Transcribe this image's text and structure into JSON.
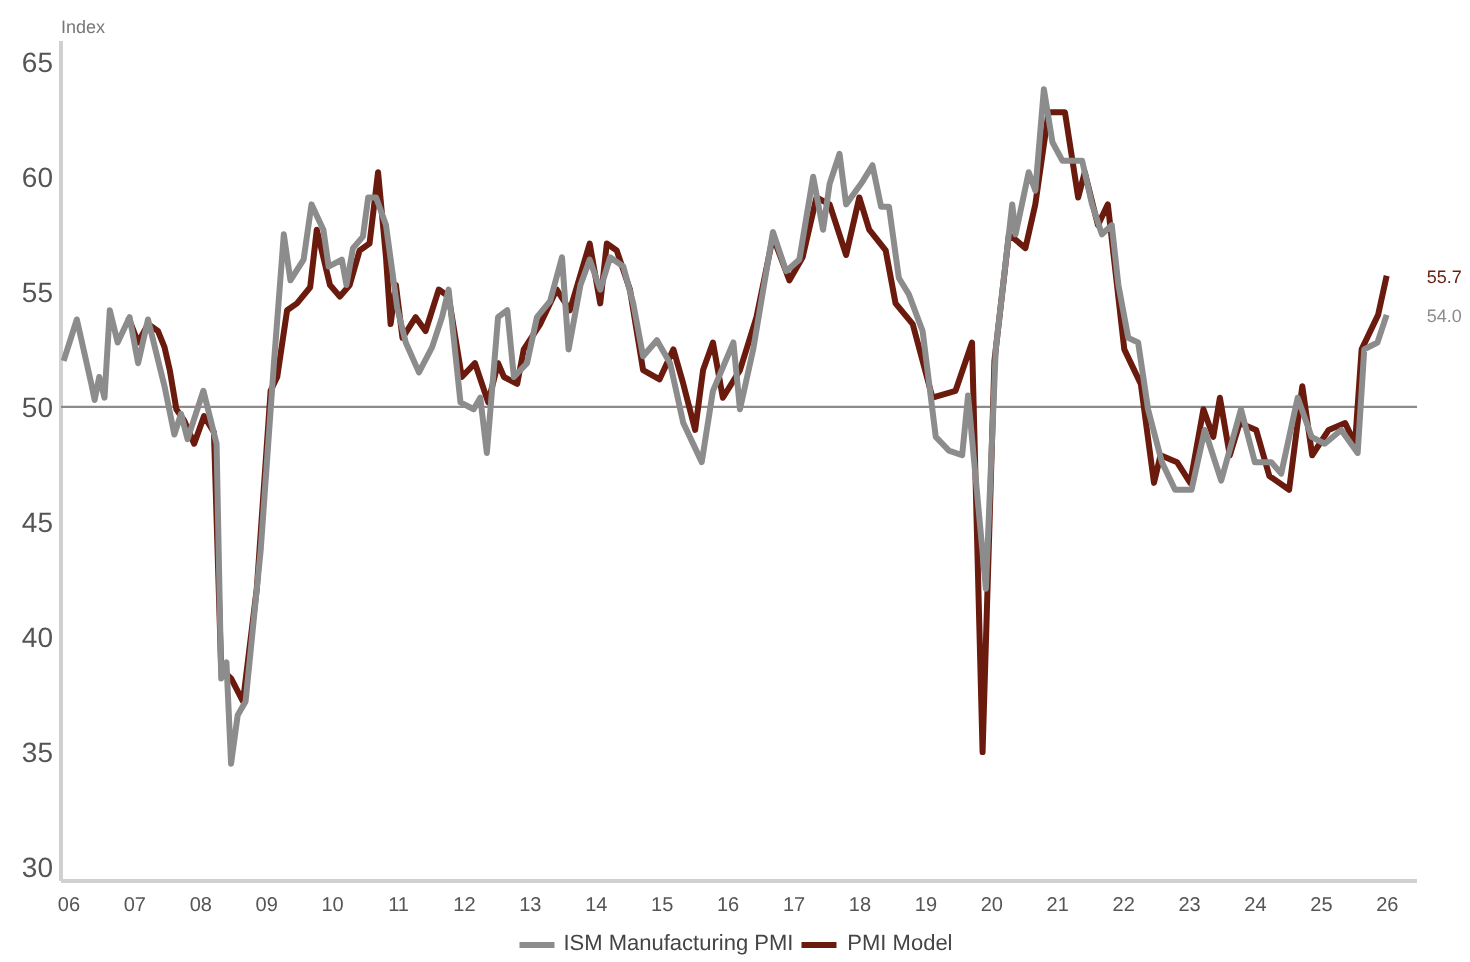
{
  "chart_data": {
    "type": "line",
    "ylabel": "Index",
    "xlim": [
      2005.88,
      2026.45
    ],
    "ylim": [
      29.4,
      65.9
    ],
    "xticks": [
      {
        "value": 2006,
        "label": "06"
      },
      {
        "value": 2007,
        "label": "07"
      },
      {
        "value": 2008,
        "label": "08"
      },
      {
        "value": 2009,
        "label": "09"
      },
      {
        "value": 2010,
        "label": "10"
      },
      {
        "value": 2011,
        "label": "11"
      },
      {
        "value": 2012,
        "label": "12"
      },
      {
        "value": 2013,
        "label": "13"
      },
      {
        "value": 2014,
        "label": "14"
      },
      {
        "value": 2015,
        "label": "15"
      },
      {
        "value": 2016,
        "label": "16"
      },
      {
        "value": 2017,
        "label": "17"
      },
      {
        "value": 2018,
        "label": "18"
      },
      {
        "value": 2019,
        "label": "19"
      },
      {
        "value": 2020,
        "label": "20"
      },
      {
        "value": 2021,
        "label": "21"
      },
      {
        "value": 2022,
        "label": "22"
      },
      {
        "value": 2023,
        "label": "23"
      },
      {
        "value": 2024,
        "label": "24"
      },
      {
        "value": 2025,
        "label": "25"
      },
      {
        "value": 2026,
        "label": "26"
      }
    ],
    "yticks": [
      30,
      35,
      40,
      45,
      50,
      55,
      60,
      65
    ],
    "grid": false,
    "legend": "bottom",
    "line_style": "solid",
    "ref_lines": [
      {
        "axis": "y",
        "value": 50,
        "color": "#8c8c8c"
      }
    ],
    "annotations": [
      {
        "text": "55.7",
        "x": 2025.99,
        "y": 55.7
      },
      {
        "text": "54.0",
        "x": 2025.99,
        "y": 54.0
      }
    ],
    "series": [
      {
        "name": "ISM Manufacturing PMI",
        "color": "#8c8c8c",
        "x": [
          2005.92,
          2006.12,
          2006.34,
          2006.39,
          2006.46,
          2006.54,
          2006.62,
          2006.74,
          2006.92,
          2007.05,
          2007.2,
          2007.45,
          2007.6,
          2007.7,
          2007.8,
          2008.04,
          2008.24,
          2008.31,
          2008.39,
          2008.46,
          2008.56,
          2008.68,
          2008.91,
          2009.11,
          2009.26,
          2009.36,
          2009.56,
          2009.68,
          2009.86,
          2009.94,
          2010.14,
          2010.21,
          2010.31,
          2010.46,
          2010.54,
          2010.66,
          2010.81,
          2010.91,
          2010.98,
          2011.11,
          2011.31,
          2011.51,
          2011.66,
          2011.76,
          2011.94,
          2012.14,
          2012.24,
          2012.34,
          2012.51,
          2012.65,
          2012.75,
          2012.95,
          2013.1,
          2013.3,
          2013.48,
          2013.58,
          2013.76,
          2013.9,
          2014.06,
          2014.21,
          2014.41,
          2014.56,
          2014.71,
          2014.92,
          2015.12,
          2015.32,
          2015.6,
          2015.77,
          2016.08,
          2016.18,
          2016.38,
          2016.68,
          2016.88,
          2017.08,
          2017.29,
          2017.44,
          2017.54,
          2017.69,
          2017.79,
          2018.04,
          2018.19,
          2018.32,
          2018.44,
          2018.59,
          2018.74,
          2018.95,
          2019.15,
          2019.35,
          2019.55,
          2019.64,
          2019.91,
          2020.06,
          2020.31,
          2020.36,
          2020.56,
          2020.66,
          2020.79,
          2020.92,
          2021.07,
          2021.29,
          2021.37,
          2021.52,
          2021.67,
          2021.82,
          2021.92,
          2022.07,
          2022.22,
          2022.37,
          2022.58,
          2022.78,
          2023.03,
          2023.23,
          2023.48,
          2023.78,
          2023.99,
          2024.24,
          2024.39,
          2024.64,
          2024.85,
          2025.05,
          2025.3,
          2025.55,
          2025.65,
          2025.85,
          2025.99
        ],
        "values": [
          52.0,
          53.8,
          51.0,
          50.3,
          51.3,
          50.4,
          54.2,
          52.8,
          53.9,
          51.9,
          53.8,
          50.9,
          48.8,
          49.7,
          48.6,
          50.7,
          48.4,
          38.2,
          38.9,
          34.5,
          36.6,
          37.2,
          43.8,
          51.9,
          57.5,
          55.5,
          56.4,
          58.8,
          57.7,
          56.1,
          56.4,
          55.3,
          56.9,
          57.4,
          59.1,
          59.1,
          57.9,
          55.8,
          54.3,
          52.8,
          51.5,
          52.6,
          53.9,
          55.1,
          50.2,
          49.9,
          50.4,
          48.0,
          53.9,
          54.2,
          51.3,
          51.9,
          53.9,
          54.6,
          56.5,
          52.5,
          55.3,
          56.4,
          55.1,
          56.5,
          56.1,
          54.5,
          52.2,
          52.9,
          51.9,
          49.3,
          47.6,
          50.7,
          52.8,
          49.9,
          52.5,
          57.6,
          55.9,
          56.4,
          60.0,
          57.7,
          59.7,
          61.0,
          58.8,
          59.8,
          60.5,
          58.7,
          58.7,
          55.6,
          54.9,
          53.3,
          48.7,
          48.1,
          47.9,
          50.5,
          42.1,
          52.5,
          58.8,
          57.5,
          60.2,
          59.4,
          63.8,
          61.5,
          60.7,
          60.7,
          60.7,
          58.8,
          57.5,
          57.9,
          55.3,
          53.0,
          52.8,
          49.9,
          47.6,
          46.4,
          46.4,
          49.0,
          46.8,
          49.9,
          47.6,
          47.6,
          47.1,
          50.4,
          48.7,
          48.4,
          49.0,
          48.0,
          52.5,
          52.8,
          54.0
        ]
      },
      {
        "name": "PMI Model",
        "color": "#6b1a0e",
        "x": [
          2006.9,
          2007.05,
          2007.2,
          2007.35,
          2007.45,
          2007.53,
          2007.63,
          2007.75,
          2007.9,
          2008.05,
          2008.2,
          2008.31,
          2008.46,
          2008.64,
          2008.85,
          2009.06,
          2009.16,
          2009.31,
          2009.46,
          2009.66,
          2009.76,
          2009.96,
          2010.11,
          2010.26,
          2010.41,
          2010.56,
          2010.69,
          2010.81,
          2010.88,
          2010.96,
          2011.06,
          2011.26,
          2011.41,
          2011.61,
          2011.76,
          2011.96,
          2012.16,
          2012.36,
          2012.51,
          2012.6,
          2012.8,
          2012.9,
          2013.15,
          2013.4,
          2013.6,
          2013.9,
          2014.06,
          2014.16,
          2014.31,
          2014.51,
          2014.71,
          2014.96,
          2015.17,
          2015.32,
          2015.5,
          2015.62,
          2015.77,
          2015.92,
          2016.18,
          2016.43,
          2016.68,
          2016.93,
          2017.13,
          2017.34,
          2017.54,
          2017.79,
          2017.99,
          2018.14,
          2018.39,
          2018.54,
          2018.8,
          2019.1,
          2019.45,
          2019.7,
          2019.86,
          2020.04,
          2020.26,
          2020.51,
          2020.66,
          2020.86,
          2021.11,
          2021.31,
          2021.41,
          2021.61,
          2021.76,
          2022.01,
          2022.26,
          2022.46,
          2022.56,
          2022.81,
          2023.01,
          2023.21,
          2023.36,
          2023.46,
          2023.61,
          2023.76,
          2024.01,
          2024.21,
          2024.51,
          2024.71,
          2024.86,
          2025.11,
          2025.36,
          2025.51,
          2025.61,
          2025.86,
          2025.99
        ],
        "values": [
          53.9,
          52.8,
          53.6,
          53.3,
          52.6,
          51.6,
          49.9,
          49.4,
          48.4,
          49.6,
          48.9,
          38.6,
          38.2,
          37.2,
          42.1,
          50.7,
          51.3,
          54.2,
          54.5,
          55.2,
          57.7,
          55.3,
          54.8,
          55.3,
          56.8,
          57.1,
          60.2,
          56.5,
          53.6,
          55.3,
          53.0,
          53.9,
          53.3,
          55.1,
          54.8,
          51.3,
          51.9,
          50.2,
          51.9,
          51.3,
          51.0,
          52.5,
          53.6,
          55.1,
          54.2,
          57.1,
          54.5,
          57.1,
          56.8,
          55.1,
          51.6,
          51.2,
          52.5,
          51.0,
          49.0,
          51.6,
          52.8,
          50.4,
          51.6,
          53.9,
          57.4,
          55.5,
          56.5,
          59.1,
          58.8,
          56.6,
          59.1,
          57.7,
          56.8,
          54.5,
          53.6,
          50.4,
          50.7,
          52.8,
          35.0,
          52.0,
          57.5,
          56.9,
          58.8,
          62.8,
          62.8,
          59.1,
          60.2,
          57.9,
          58.8,
          52.5,
          51.0,
          46.7,
          47.9,
          47.6,
          46.7,
          49.9,
          48.7,
          50.4,
          47.9,
          49.3,
          49.0,
          47.0,
          46.4,
          50.9,
          47.9,
          49.0,
          49.3,
          48.4,
          52.5,
          54.0,
          55.7
        ]
      }
    ]
  }
}
